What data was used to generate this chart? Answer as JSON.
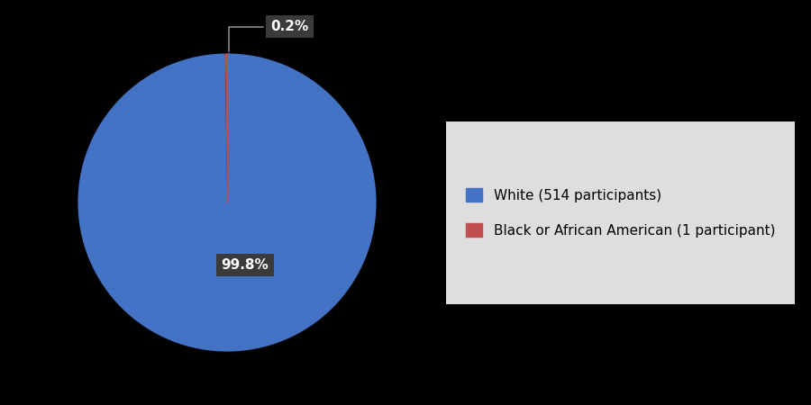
{
  "slices": [
    99.8,
    0.2
  ],
  "labels": [
    "White (514 participants)",
    "Black or African American (1 participant)"
  ],
  "colors": [
    "#4472C4",
    "#C0504D"
  ],
  "autopct_labels": [
    "99.8%",
    "0.2%"
  ],
  "background_color": "#000000",
  "legend_bg_color": "#DEDEDE",
  "label_bg_color": "#3A3A3A",
  "label_text_color": "#FFFFFF",
  "label_fontsize": 11,
  "legend_fontsize": 11,
  "connector_color_gray": "#888888",
  "connector_color_red": "#C0504D"
}
